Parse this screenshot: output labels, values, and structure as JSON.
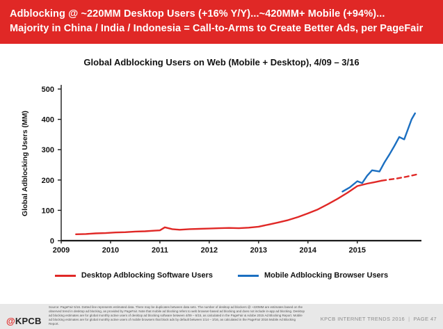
{
  "header": {
    "bg_color": "#E02826",
    "line1": "Adblocking @ ~220MM Desktop Users (+16% Y/Y)...~420MM+ Mobile (+94%)...",
    "line2": "Majority in China / India / Indonesia = Call-to-Arms to Create Better Ads, per PageFair"
  },
  "chart_data": {
    "type": "line",
    "title": "Global Adblocking Users on Web (Mobile + Desktop), 4/09 – 3/16",
    "xlabel": "",
    "ylabel": "Global Adblocking Users (MM)",
    "ylim": [
      0,
      500
    ],
    "xlim": [
      2009,
      2016.3
    ],
    "yticks": [
      0,
      100,
      200,
      300,
      400,
      500
    ],
    "xticks": [
      2009,
      2010,
      2011,
      2012,
      2013,
      2014,
      2015
    ],
    "grid": false,
    "legend_position": "bottom",
    "series": [
      {
        "name": "Desktop Adblocking Software Users",
        "color": "#E02826",
        "line_style": "solid",
        "x": [
          2009.3,
          2009.5,
          2009.7,
          2009.9,
          2010.1,
          2010.3,
          2010.5,
          2010.7,
          2010.9,
          2011.0,
          2011.1,
          2011.25,
          2011.4,
          2011.6,
          2011.8,
          2012.0,
          2012.2,
          2012.4,
          2012.6,
          2012.8,
          2013.0,
          2013.2,
          2013.4,
          2013.6,
          2013.8,
          2014.0,
          2014.2,
          2014.4,
          2014.6,
          2014.8,
          2015.0,
          2015.2,
          2015.35,
          2015.5
        ],
        "values": [
          21,
          22,
          24,
          25,
          27,
          28,
          30,
          31,
          33,
          34,
          44,
          38,
          36,
          38,
          39,
          40,
          41,
          42,
          41,
          43,
          46,
          53,
          60,
          68,
          78,
          90,
          103,
          120,
          138,
          158,
          180,
          188,
          193,
          198
        ]
      },
      {
        "name": "Desktop Adblocking Software Users (estimated, dotted)",
        "color": "#E02826",
        "line_style": "dashed",
        "x": [
          2015.5,
          2015.8,
          2016.0,
          2016.25
        ],
        "values": [
          198,
          205,
          211,
          220
        ]
      },
      {
        "name": "Mobile Adblocking Browser Users",
        "color": "#1B6FC1",
        "line_style": "solid",
        "x": [
          2014.7,
          2014.85,
          2015.0,
          2015.1,
          2015.2,
          2015.3,
          2015.45,
          2015.55,
          2015.65,
          2015.75,
          2015.85,
          2015.95,
          2016.05,
          2016.1,
          2016.17
        ],
        "values": [
          162,
          176,
          196,
          190,
          214,
          232,
          228,
          258,
          284,
          312,
          342,
          334,
          378,
          400,
          420
        ]
      }
    ],
    "legend": [
      {
        "label": "Desktop Adblocking Software Users",
        "color": "#E02826"
      },
      {
        "label": "Mobile Adblocking Browser Users",
        "color": "#1B6FC1"
      }
    ]
  },
  "footer": {
    "source_text": "Source: PageFair 5/16. Dotted line represents estimated data. There may be duplicates between data sets. The number of desktop ad blockers @ ~220MM are estimates based on the observed trend in desktop ad blocking, as provided by PageFair. Note that mobile ad blocking refers to web browser-based ad blocking and does not include in-app ad blocking. Desktop ad blocking estimates are for global monthly active users of desktop ad blocking software between 4/09 – 6/15, as calculated in the PageFair & Adobe 2015 Ad Blocking Report. Mobile ad blocking estimates are for global monthly active users of mobile browsers that block ads by default between 1/14 – 3/16, as calculated in the PageFair 2016 Mobile Ad Blocking Report.",
    "logo_at": "@",
    "logo_kpcb": "KPCB",
    "right_text": "KPCB INTERNET TRENDS 2016",
    "separator": "|",
    "page_label": "PAGE 47"
  }
}
